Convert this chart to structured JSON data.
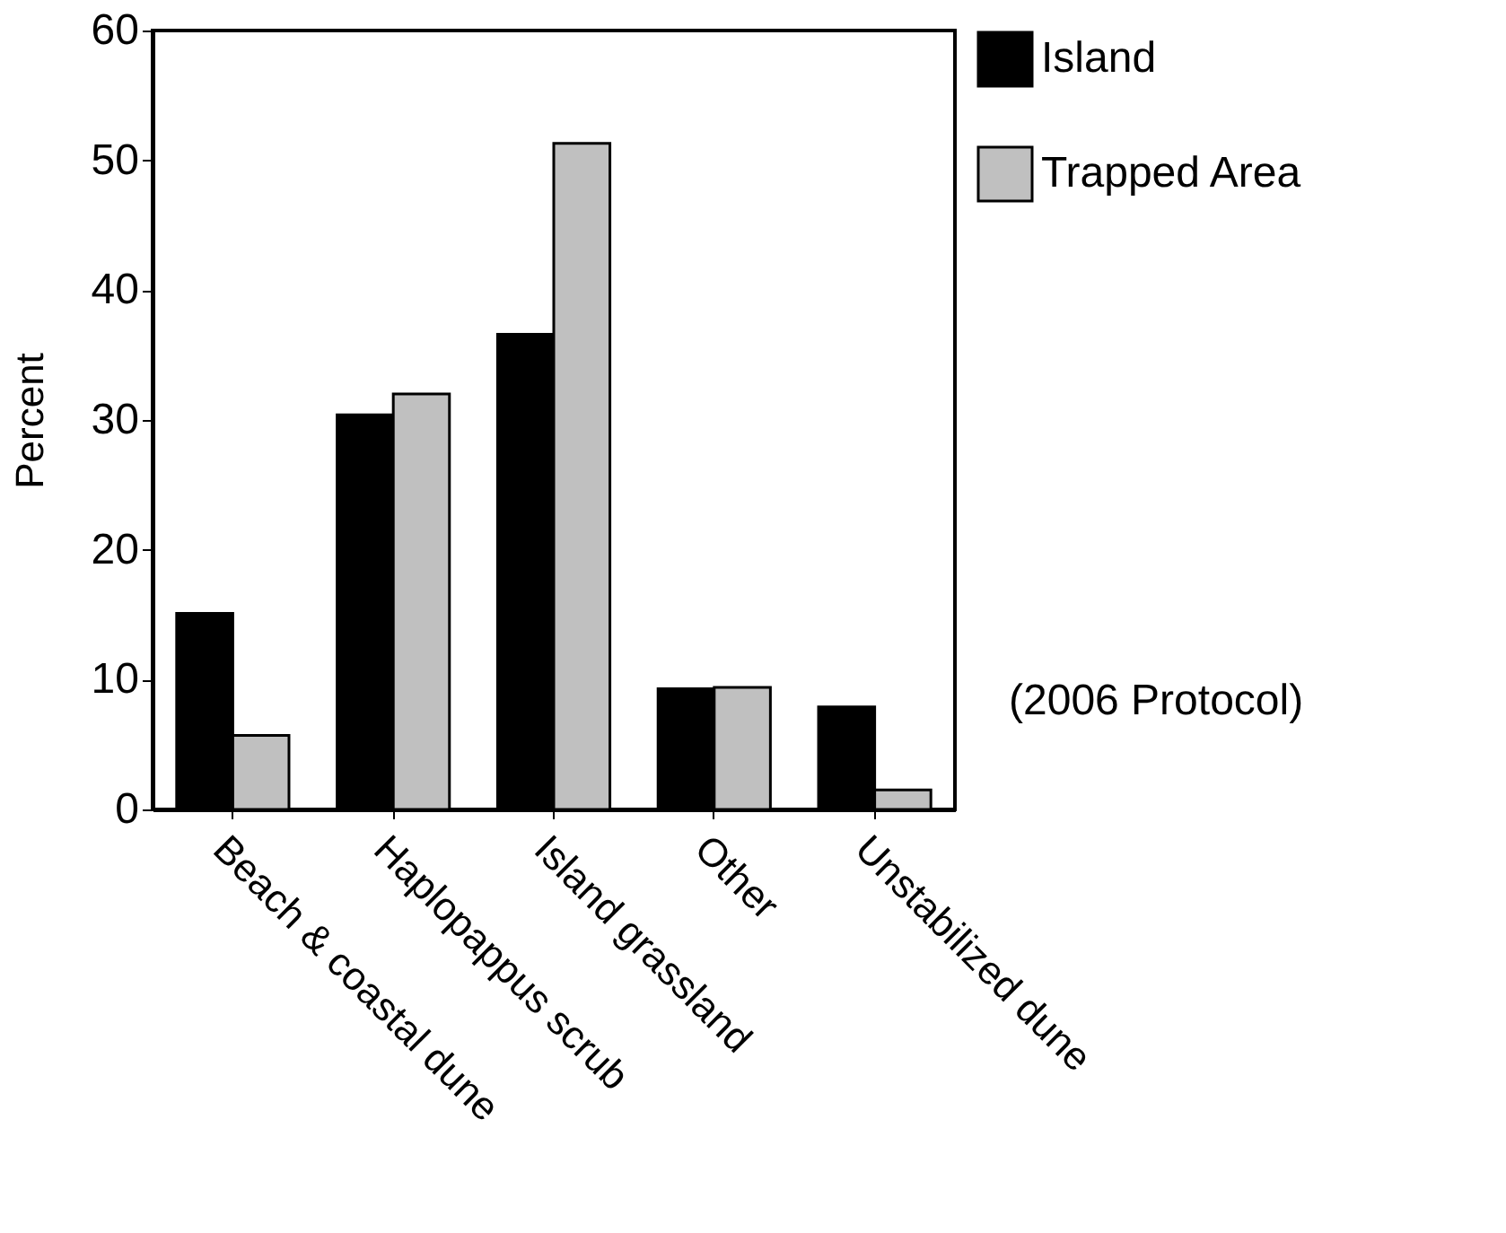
{
  "chart_data": {
    "type": "bar",
    "ylabel": "Percent",
    "categories": [
      "Beach & coastal dune",
      "Haplopappus scrub",
      "Island grassland",
      "Other",
      "Unstabilized dune"
    ],
    "series": [
      {
        "name": "Island",
        "color": "#000000",
        "values": [
          15.1,
          30.4,
          36.6,
          9.3,
          7.9
        ]
      },
      {
        "name": "Trapped Area",
        "color": "#c0c0c0",
        "values": [
          5.7,
          32.0,
          51.3,
          9.4,
          1.5
        ]
      }
    ],
    "annotations": [
      "(2006 Protocol)"
    ],
    "ylim": [
      0,
      60
    ],
    "yticks": [
      0,
      10,
      20,
      30,
      40,
      50,
      60
    ],
    "grid": false,
    "legend": "right"
  }
}
